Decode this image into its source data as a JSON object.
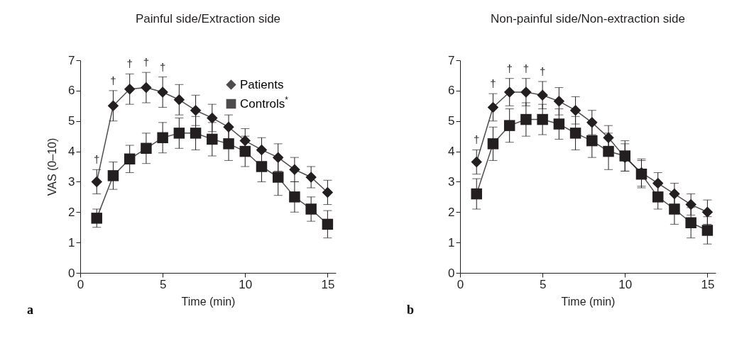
{
  "chart_data": [
    {
      "type": "line",
      "title": "Painful side/Extraction side",
      "xlabel": "Time (min)",
      "ylabel": "VAS (0–10)",
      "x": [
        1,
        2,
        3,
        4,
        5,
        6,
        7,
        8,
        9,
        10,
        11,
        12,
        13,
        14,
        15
      ],
      "series": [
        {
          "name": "Patients",
          "color": "#231f20",
          "marker": "diamond",
          "values": [
            3.0,
            5.5,
            6.05,
            6.1,
            5.95,
            5.7,
            5.35,
            5.1,
            4.8,
            4.35,
            4.05,
            3.8,
            3.4,
            3.15,
            2.65
          ],
          "errors": [
            0.4,
            0.5,
            0.5,
            0.5,
            0.5,
            0.5,
            0.5,
            0.45,
            0.4,
            0.4,
            0.4,
            0.45,
            0.4,
            0.35,
            0.4
          ]
        },
        {
          "name": "Controls$^{*}$",
          "color": "#231f20",
          "marker": "square",
          "values": [
            1.8,
            3.2,
            3.75,
            4.1,
            4.45,
            4.6,
            4.6,
            4.4,
            4.25,
            4.0,
            3.5,
            3.15,
            2.5,
            2.1,
            1.6
          ],
          "errors": [
            0.3,
            0.45,
            0.45,
            0.5,
            0.5,
            0.5,
            0.55,
            0.55,
            0.55,
            0.5,
            0.5,
            0.6,
            0.5,
            0.4,
            0.45
          ]
        }
      ],
      "xlim": [
        0,
        15.5
      ],
      "xticks": [
        0,
        5,
        10,
        15
      ],
      "ylim": [
        0,
        7
      ],
      "yticks": [
        0,
        1,
        2,
        3,
        4,
        5,
        6,
        7
      ],
      "legend": "top right",
      "grid": false,
      "annotations": [
        "†",
        "†",
        "†",
        "†",
        "†",
        "a"
      ]
    },
    {
      "type": "line",
      "title": "Non-painful side/Non-extraction side",
      "xlabel": "Time (min)",
      "x": [
        1,
        2,
        3,
        4,
        5,
        6,
        7,
        8,
        9,
        10,
        11,
        12,
        13,
        14,
        15
      ],
      "series": [
        {
          "color": "#231f20",
          "marker": "diamond",
          "values": [
            3.65,
            5.45,
            5.95,
            5.95,
            5.85,
            5.65,
            5.35,
            4.95,
            4.45,
            3.8,
            3.3,
            2.95,
            2.6,
            2.25,
            2.0
          ],
          "errors": [
            0.4,
            0.45,
            0.45,
            0.45,
            0.45,
            0.45,
            0.45,
            0.4,
            0.4,
            0.45,
            0.45,
            0.35,
            0.35,
            0.35,
            0.4
          ]
        },
        {
          "color": "#231f20",
          "marker": "square",
          "values": [
            2.6,
            4.25,
            4.85,
            5.05,
            5.05,
            4.9,
            4.6,
            4.35,
            4.0,
            3.85,
            3.25,
            2.5,
            2.1,
            1.65,
            1.4
          ],
          "errors": [
            0.5,
            0.55,
            0.55,
            0.55,
            0.5,
            0.5,
            0.55,
            0.55,
            0.6,
            0.5,
            0.45,
            0.4,
            0.5,
            0.5,
            0.45
          ]
        }
      ],
      "xlim": [
        0,
        15.5
      ],
      "xticks": [
        0,
        5,
        10,
        15
      ],
      "ylim": [
        0,
        7
      ],
      "yticks": [
        0,
        1,
        2,
        3,
        4,
        5,
        6,
        7
      ],
      "grid": false,
      "annotations": [
        "†",
        "†",
        "†",
        "†",
        "†",
        "b"
      ]
    }
  ]
}
